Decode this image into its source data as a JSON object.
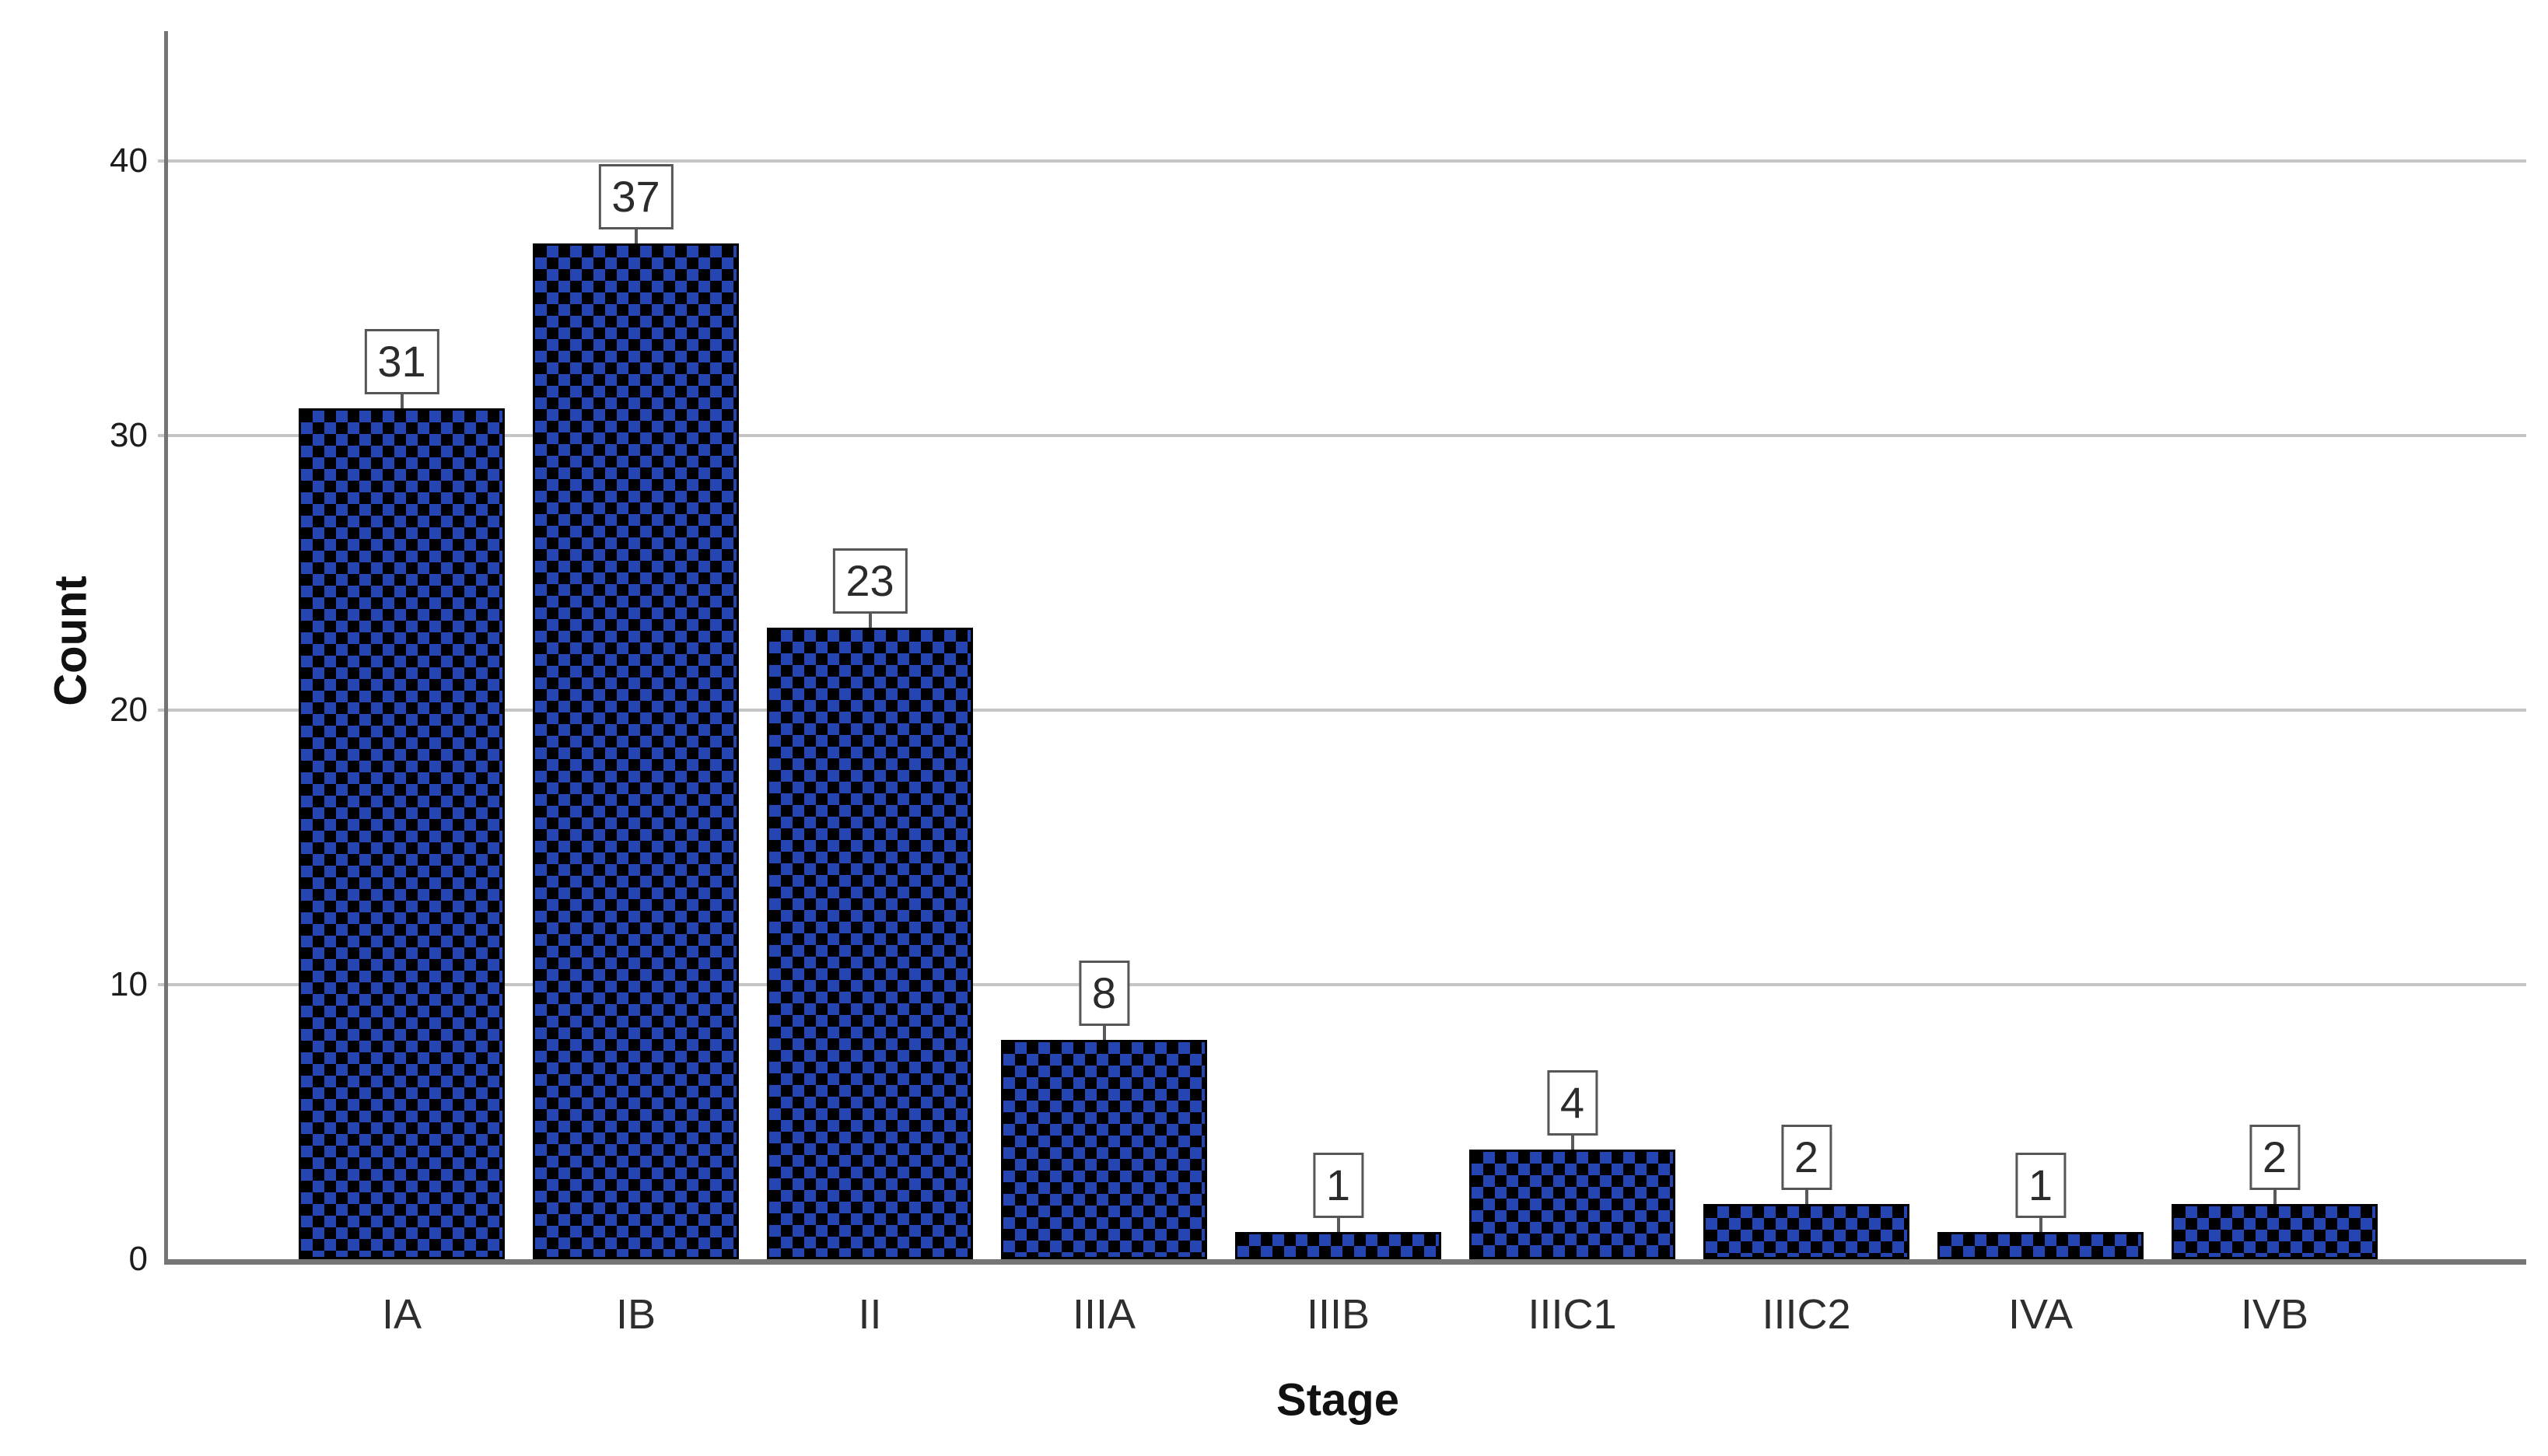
{
  "chart_data": {
    "type": "bar",
    "title": "",
    "xlabel": "Stage",
    "ylabel": "Count",
    "categories": [
      "IA",
      "IB",
      "II",
      "IIIA",
      "IIIB",
      "IIIC1",
      "IIIC2",
      "IVA",
      "IVB"
    ],
    "values": [
      31,
      37,
      23,
      8,
      1,
      4,
      2,
      1,
      2
    ],
    "yticks": [
      0,
      10,
      20,
      30,
      40
    ],
    "ylim": [
      0,
      45
    ],
    "grid": "horizontal",
    "legend": "none",
    "bar_style": {
      "pattern": "checkerboard",
      "pattern_color_1": "#2545b2",
      "pattern_color_2": "#000000",
      "bar_border_color": "#000000",
      "value_label_boxed": true
    },
    "colors": {
      "background": "#ffffff",
      "axis_line": "#757575",
      "gridline": "#c5c5c5",
      "tick_text": "#1c1c1c",
      "axis_title_text": "#111111",
      "value_box_border": "#565656",
      "value_box_bg": "#ffffff"
    }
  }
}
